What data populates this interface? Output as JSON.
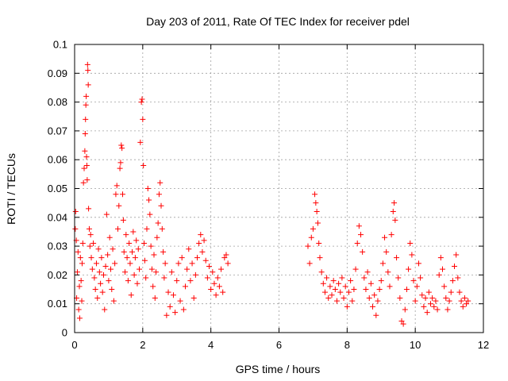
{
  "chart_data": {
    "type": "scatter",
    "title": "Day 203 of 2011, Rate Of TEC Index for receiver pdel",
    "xlabel": "GPS time / hours",
    "ylabel": "ROTI / TECUs",
    "xlim": [
      0,
      12
    ],
    "ylim": [
      0,
      0.1
    ],
    "x_ticks": [
      0,
      2,
      4,
      6,
      8,
      10,
      12
    ],
    "x_tick_labels": [
      "0",
      "2",
      "4",
      "6",
      "8",
      "10",
      "12"
    ],
    "y_ticks": [
      0,
      0.01,
      0.02,
      0.03,
      0.04,
      0.05,
      0.06,
      0.07,
      0.08,
      0.09,
      0.1
    ],
    "y_tick_labels": [
      "0",
      "0.01",
      "0.02",
      "0.03",
      "0.04",
      "0.05",
      "0.06",
      "0.07",
      "0.08",
      "0.09",
      "0.1"
    ],
    "grid": true,
    "marker": "plus",
    "series_color": "#ff0000",
    "series": [
      {
        "name": "ROTI",
        "points": [
          [
            0.02,
            0.036
          ],
          [
            0.03,
            0.042
          ],
          [
            0.05,
            0.032
          ],
          [
            0.06,
            0.012
          ],
          [
            0.08,
            0.021
          ],
          [
            0.1,
            0.028
          ],
          [
            0.12,
            0.008
          ],
          [
            0.14,
            0.016
          ],
          [
            0.15,
            0.005
          ],
          [
            0.17,
            0.026
          ],
          [
            0.19,
            0.018
          ],
          [
            0.21,
            0.011
          ],
          [
            0.22,
            0.024
          ],
          [
            0.24,
            0.031
          ],
          [
            0.26,
            0.052
          ],
          [
            0.28,
            0.057
          ],
          [
            0.3,
            0.063
          ],
          [
            0.31,
            0.069
          ],
          [
            0.32,
            0.074
          ],
          [
            0.33,
            0.079
          ],
          [
            0.34,
            0.082
          ],
          [
            0.35,
            0.061
          ],
          [
            0.36,
            0.058
          ],
          [
            0.37,
            0.053
          ],
          [
            0.38,
            0.093
          ],
          [
            0.39,
            0.091
          ],
          [
            0.4,
            0.086
          ],
          [
            0.41,
            0.043
          ],
          [
            0.43,
            0.036
          ],
          [
            0.45,
            0.03
          ],
          [
            0.47,
            0.034
          ],
          [
            0.49,
            0.026
          ],
          [
            0.52,
            0.022
          ],
          [
            0.55,
            0.031
          ],
          [
            0.58,
            0.019
          ],
          [
            0.61,
            0.015
          ],
          [
            0.64,
            0.024
          ],
          [
            0.67,
            0.012
          ],
          [
            0.7,
            0.029
          ],
          [
            0.73,
            0.021
          ],
          [
            0.76,
            0.017
          ],
          [
            0.79,
            0.026
          ],
          [
            0.82,
            0.014
          ],
          [
            0.85,
            0.02
          ],
          [
            0.88,
            0.008
          ],
          [
            0.91,
            0.023
          ],
          [
            0.94,
            0.041
          ],
          [
            0.97,
            0.027
          ],
          [
            1.0,
            0.018
          ],
          [
            1.03,
            0.033
          ],
          [
            1.06,
            0.022
          ],
          [
            1.09,
            0.015
          ],
          [
            1.12,
            0.029
          ],
          [
            1.15,
            0.011
          ],
          [
            1.18,
            0.024
          ],
          [
            1.21,
            0.048
          ],
          [
            1.24,
            0.051
          ],
          [
            1.27,
            0.036
          ],
          [
            1.3,
            0.044
          ],
          [
            1.33,
            0.057
          ],
          [
            1.35,
            0.059
          ],
          [
            1.37,
            0.065
          ],
          [
            1.39,
            0.064
          ],
          [
            1.41,
            0.048
          ],
          [
            1.43,
            0.039
          ],
          [
            1.45,
            0.028
          ],
          [
            1.48,
            0.021
          ],
          [
            1.51,
            0.034
          ],
          [
            1.54,
            0.026
          ],
          [
            1.57,
            0.018
          ],
          [
            1.6,
            0.031
          ],
          [
            1.63,
            0.024
          ],
          [
            1.66,
            0.013
          ],
          [
            1.69,
            0.028
          ],
          [
            1.72,
            0.035
          ],
          [
            1.75,
            0.02
          ],
          [
            1.78,
            0.026
          ],
          [
            1.81,
            0.032
          ],
          [
            1.84,
            0.017
          ],
          [
            1.87,
            0.029
          ],
          [
            1.9,
            0.022
          ],
          [
            1.93,
            0.066
          ],
          [
            1.96,
            0.08
          ],
          [
            1.98,
            0.081
          ],
          [
            2.0,
            0.074
          ],
          [
            2.02,
            0.058
          ],
          [
            2.04,
            0.031
          ],
          [
            2.06,
            0.025
          ],
          [
            2.09,
            0.019
          ],
          [
            2.12,
            0.036
          ],
          [
            2.15,
            0.05
          ],
          [
            2.18,
            0.046
          ],
          [
            2.21,
            0.041
          ],
          [
            2.24,
            0.03
          ],
          [
            2.27,
            0.022
          ],
          [
            2.3,
            0.016
          ],
          [
            2.33,
            0.027
          ],
          [
            2.36,
            0.012
          ],
          [
            2.39,
            0.021
          ],
          [
            2.42,
            0.033
          ],
          [
            2.45,
            0.038
          ],
          [
            2.48,
            0.048
          ],
          [
            2.51,
            0.052
          ],
          [
            2.54,
            0.044
          ],
          [
            2.57,
            0.036
          ],
          [
            2.6,
            0.028
          ],
          [
            2.63,
            0.019
          ],
          [
            2.66,
            0.024
          ],
          [
            2.7,
            0.006
          ],
          [
            2.75,
            0.014
          ],
          [
            2.8,
            0.009
          ],
          [
            2.85,
            0.021
          ],
          [
            2.9,
            0.013
          ],
          [
            2.95,
            0.007
          ],
          [
            3.0,
            0.018
          ],
          [
            3.05,
            0.024
          ],
          [
            3.1,
            0.011
          ],
          [
            3.15,
            0.026
          ],
          [
            3.2,
            0.008
          ],
          [
            3.25,
            0.016
          ],
          [
            3.3,
            0.022
          ],
          [
            3.35,
            0.029
          ],
          [
            3.4,
            0.018
          ],
          [
            3.45,
            0.024
          ],
          [
            3.5,
            0.012
          ],
          [
            3.55,
            0.02
          ],
          [
            3.6,
            0.026
          ],
          [
            3.65,
            0.031
          ],
          [
            3.7,
            0.034
          ],
          [
            3.75,
            0.028
          ],
          [
            3.8,
            0.032
          ],
          [
            3.85,
            0.025
          ],
          [
            3.9,
            0.019
          ],
          [
            3.95,
            0.023
          ],
          [
            4.0,
            0.015
          ],
          [
            4.05,
            0.021
          ],
          [
            4.1,
            0.017
          ],
          [
            4.15,
            0.013
          ],
          [
            4.2,
            0.019
          ],
          [
            4.25,
            0.016
          ],
          [
            4.3,
            0.022
          ],
          [
            4.35,
            0.014
          ],
          [
            4.4,
            0.026
          ],
          [
            4.45,
            0.027
          ],
          [
            4.5,
            0.024
          ],
          [
            6.85,
            0.03
          ],
          [
            6.9,
            0.024
          ],
          [
            6.95,
            0.033
          ],
          [
            7.0,
            0.036
          ],
          [
            7.05,
            0.048
          ],
          [
            7.08,
            0.045
          ],
          [
            7.11,
            0.042
          ],
          [
            7.14,
            0.038
          ],
          [
            7.17,
            0.031
          ],
          [
            7.2,
            0.026
          ],
          [
            7.25,
            0.021
          ],
          [
            7.3,
            0.017
          ],
          [
            7.35,
            0.014
          ],
          [
            7.4,
            0.019
          ],
          [
            7.45,
            0.012
          ],
          [
            7.5,
            0.016
          ],
          [
            7.55,
            0.013
          ],
          [
            7.6,
            0.018
          ],
          [
            7.65,
            0.015
          ],
          [
            7.7,
            0.011
          ],
          [
            7.75,
            0.017
          ],
          [
            7.8,
            0.014
          ],
          [
            7.85,
            0.019
          ],
          [
            7.9,
            0.012
          ],
          [
            7.95,
            0.016
          ],
          [
            8.0,
            0.009
          ],
          [
            8.05,
            0.014
          ],
          [
            8.1,
            0.018
          ],
          [
            8.15,
            0.011
          ],
          [
            8.2,
            0.015
          ],
          [
            8.25,
            0.022
          ],
          [
            8.3,
            0.031
          ],
          [
            8.35,
            0.037
          ],
          [
            8.4,
            0.034
          ],
          [
            8.45,
            0.028
          ],
          [
            8.5,
            0.019
          ],
          [
            8.55,
            0.015
          ],
          [
            8.6,
            0.021
          ],
          [
            8.65,
            0.012
          ],
          [
            8.7,
            0.017
          ],
          [
            8.75,
            0.009
          ],
          [
            8.8,
            0.013
          ],
          [
            8.85,
            0.006
          ],
          [
            8.9,
            0.011
          ],
          [
            8.95,
            0.015
          ],
          [
            9.0,
            0.018
          ],
          [
            9.05,
            0.024
          ],
          [
            9.1,
            0.033
          ],
          [
            9.15,
            0.028
          ],
          [
            9.2,
            0.021
          ],
          [
            9.25,
            0.016
          ],
          [
            9.3,
            0.034
          ],
          [
            9.35,
            0.042
          ],
          [
            9.38,
            0.045
          ],
          [
            9.41,
            0.039
          ],
          [
            9.45,
            0.026
          ],
          [
            9.5,
            0.019
          ],
          [
            9.55,
            0.012
          ],
          [
            9.6,
            0.004
          ],
          [
            9.65,
            0.003
          ],
          [
            9.7,
            0.008
          ],
          [
            9.75,
            0.015
          ],
          [
            9.8,
            0.022
          ],
          [
            9.85,
            0.031
          ],
          [
            9.9,
            0.027
          ],
          [
            9.95,
            0.018
          ],
          [
            10.0,
            0.011
          ],
          [
            10.05,
            0.016
          ],
          [
            10.1,
            0.024
          ],
          [
            10.15,
            0.019
          ],
          [
            10.2,
            0.013
          ],
          [
            10.25,
            0.009
          ],
          [
            10.3,
            0.012
          ],
          [
            10.35,
            0.007
          ],
          [
            10.4,
            0.014
          ],
          [
            10.45,
            0.01
          ],
          [
            10.5,
            0.012
          ],
          [
            10.55,
            0.009
          ],
          [
            10.6,
            0.011
          ],
          [
            10.65,
            0.008
          ],
          [
            10.7,
            0.02
          ],
          [
            10.75,
            0.026
          ],
          [
            10.8,
            0.022
          ],
          [
            10.85,
            0.016
          ],
          [
            10.9,
            0.012
          ],
          [
            10.95,
            0.008
          ],
          [
            11.0,
            0.011
          ],
          [
            11.05,
            0.014
          ],
          [
            11.1,
            0.018
          ],
          [
            11.15,
            0.023
          ],
          [
            11.2,
            0.027
          ],
          [
            11.25,
            0.019
          ],
          [
            11.3,
            0.014
          ],
          [
            11.35,
            0.011
          ],
          [
            11.4,
            0.009
          ],
          [
            11.45,
            0.012
          ],
          [
            11.5,
            0.01
          ],
          [
            11.55,
            0.011
          ]
        ]
      }
    ]
  }
}
